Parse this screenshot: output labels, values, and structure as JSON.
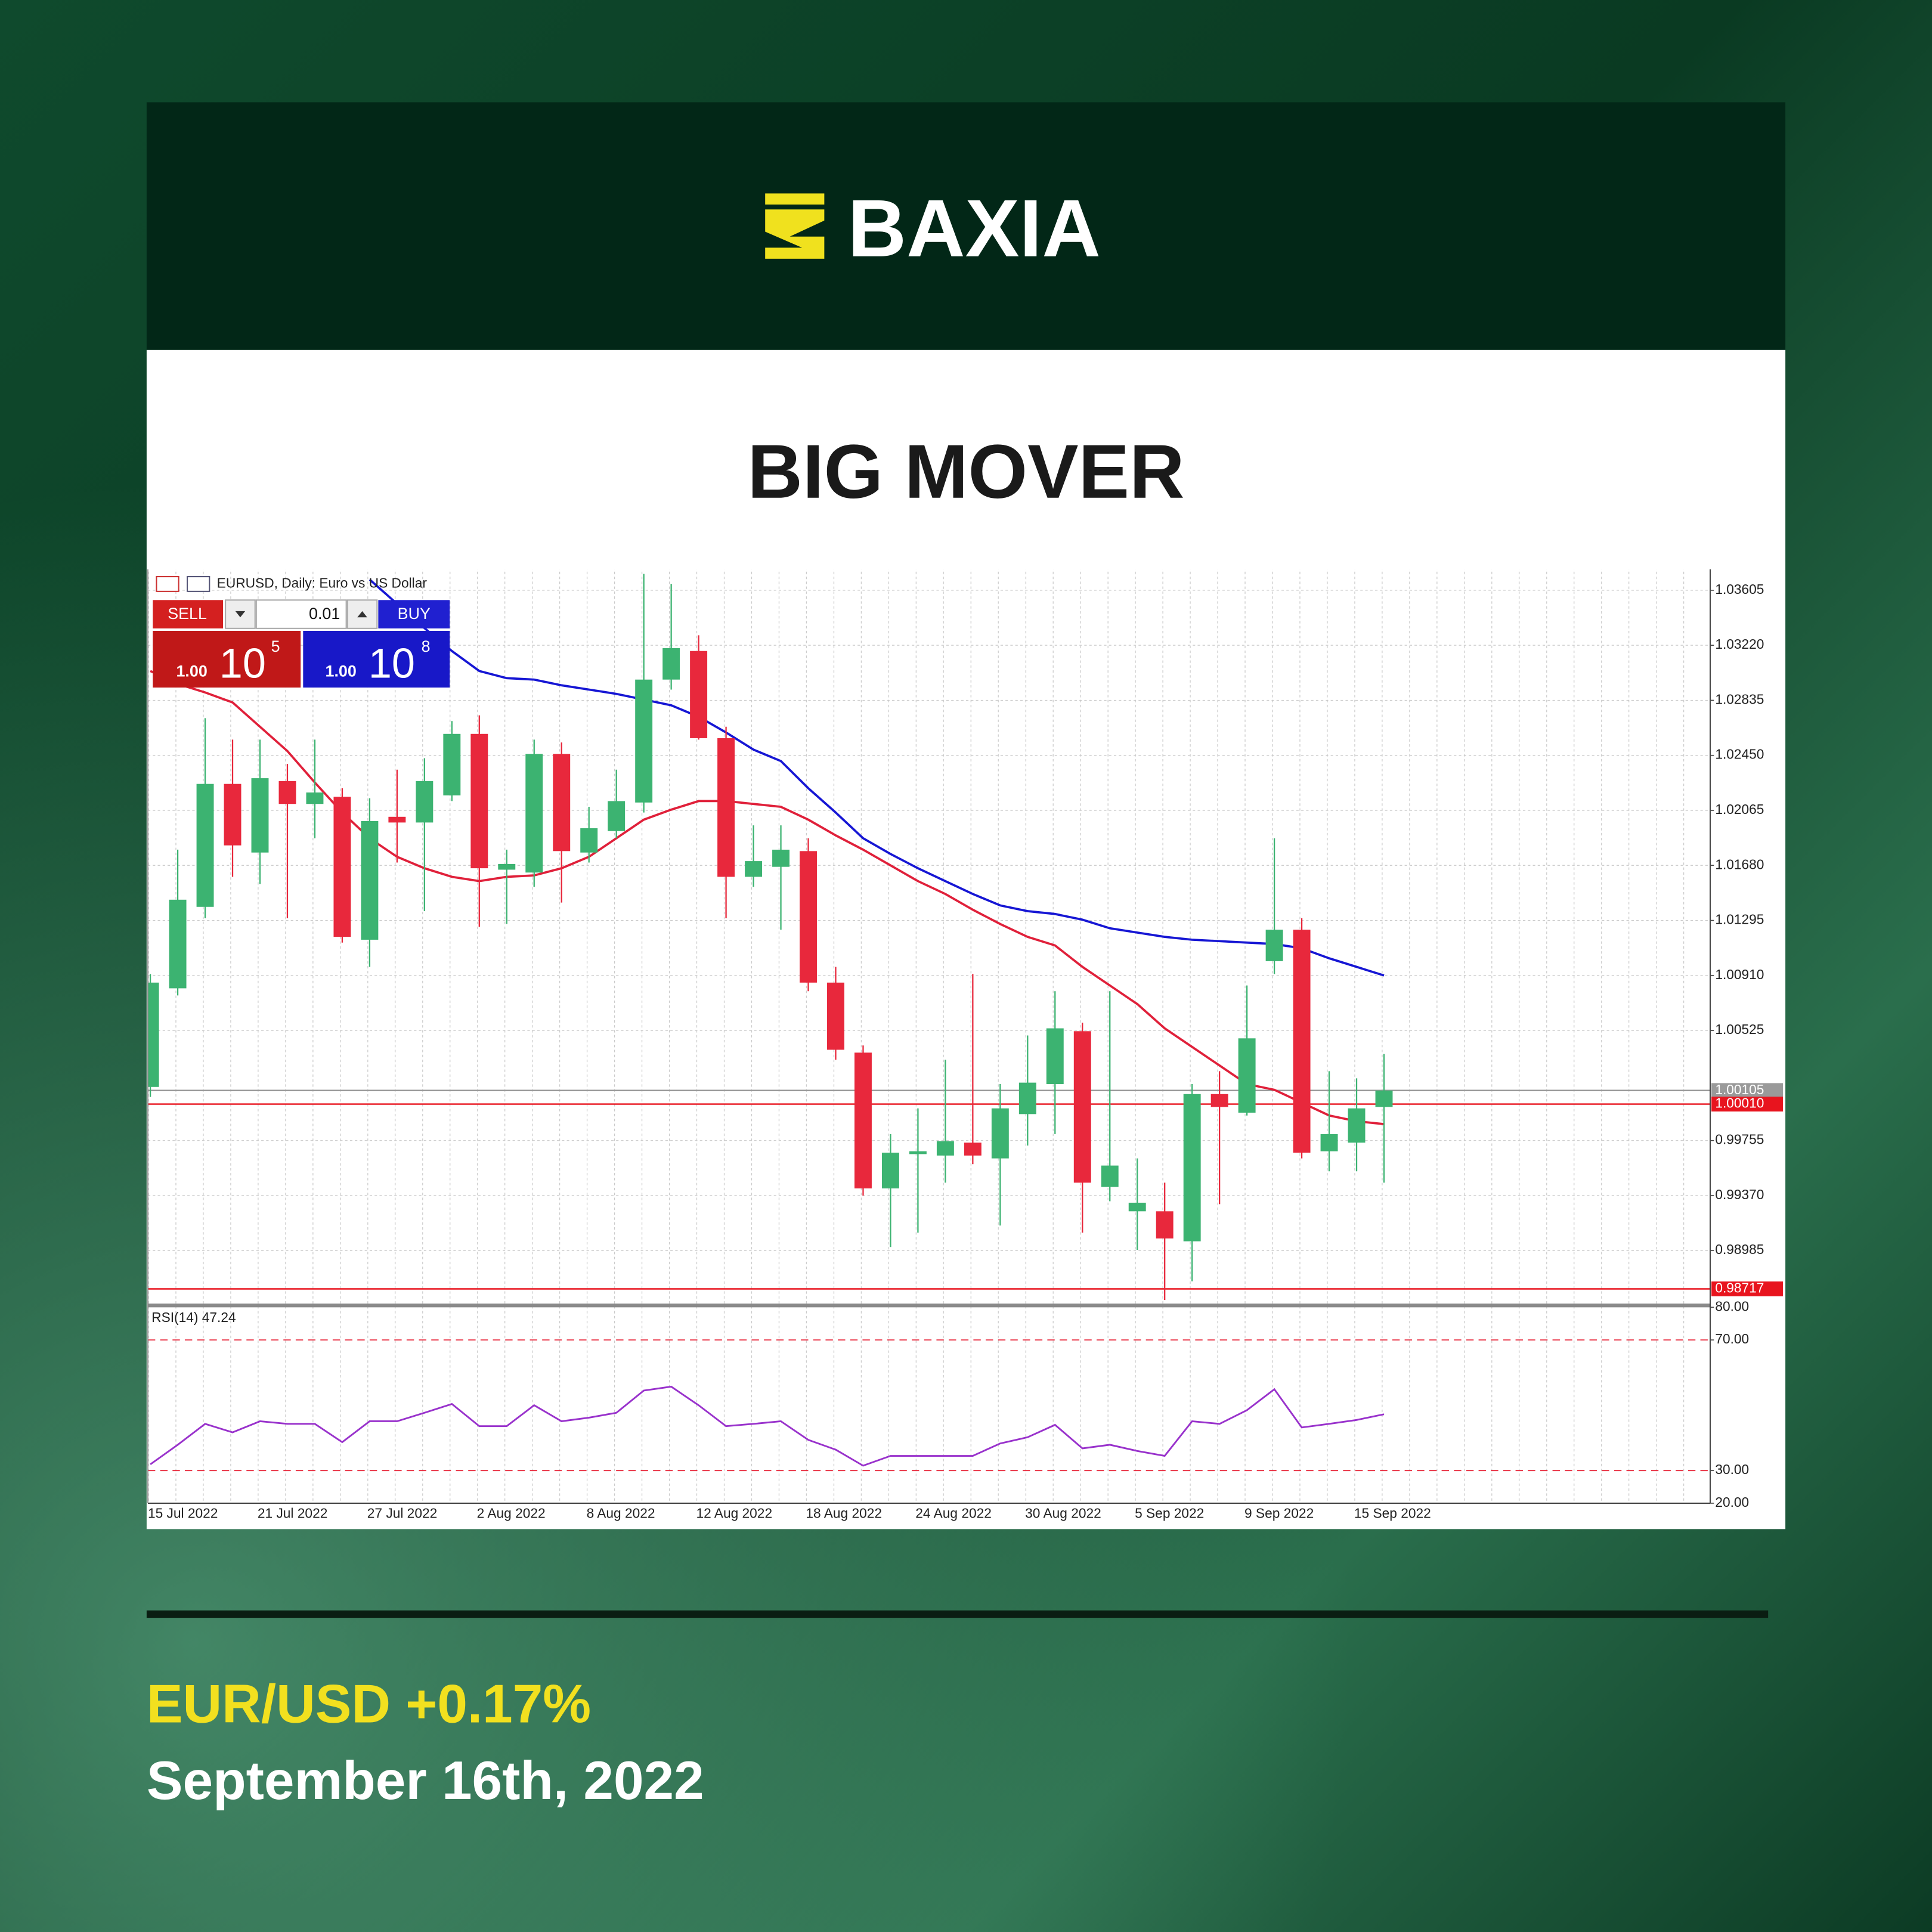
{
  "brand": "BAXIA",
  "headline": "BIG MOVER",
  "footer": {
    "pair_change": "EUR/USD +0.17%",
    "date": "September 16th, 2022"
  },
  "terminal": {
    "sell": "SELL",
    "lot": "0.01",
    "buy": "BUY",
    "sell_volume": "1.00",
    "sell_big": "10",
    "sell_small": "5",
    "buy_volume": "1.00",
    "buy_big": "10",
    "buy_small": "8"
  },
  "chart_data": [
    {
      "type": "candlestick",
      "title": "EURUSD, Daily:  Euro vs US Dollar",
      "categories": [
        "15 Jul 2022",
        null,
        null,
        null,
        "21 Jul 2022",
        null,
        null,
        null,
        "27 Jul 2022",
        null,
        null,
        null,
        "2 Aug 2022",
        null,
        null,
        null,
        "8 Aug 2022",
        null,
        null,
        null,
        "12 Aug 2022",
        null,
        null,
        null,
        "18 Aug 2022",
        null,
        null,
        null,
        "24 Aug 2022",
        null,
        null,
        null,
        "30 Aug 2022",
        null,
        null,
        null,
        "5 Sep 2022",
        null,
        null,
        null,
        "9 Sep 2022",
        null,
        null,
        null,
        "15 Sep 2022",
        null
      ],
      "open": [
        1.0013,
        1.0082,
        1.0139,
        1.0225,
        1.0177,
        1.0227,
        1.0211,
        1.0216,
        1.0116,
        1.0202,
        1.0198,
        1.0217,
        1.026,
        1.0165,
        1.0163,
        1.0246,
        1.0177,
        1.0192,
        1.0212,
        1.0298,
        1.0318,
        1.0257,
        1.016,
        1.0167,
        1.0178,
        1.0086,
        1.0037,
        0.9942,
        0.9966,
        0.9965,
        0.9974,
        0.9963,
        0.9994,
        1.0015,
        1.0052,
        0.9943,
        0.9926,
        0.9926,
        0.9905,
        1.0008,
        0.9995,
        1.0101,
        1.0123,
        0.9968,
        0.9974,
        0.9999
      ],
      "high": [
        1.0092,
        1.0179,
        1.0271,
        1.0256,
        1.0256,
        1.0239,
        1.0256,
        1.0222,
        1.0215,
        1.0235,
        1.0243,
        1.0269,
        1.0273,
        1.0179,
        1.0256,
        1.0254,
        1.0209,
        1.0235,
        1.0372,
        1.0365,
        1.0329,
        1.0265,
        1.0196,
        1.0196,
        1.0187,
        1.0097,
        1.0042,
        0.998,
        0.9998,
        1.0032,
        1.0092,
        1.0015,
        1.0049,
        1.008,
        1.0058,
        1.008,
        0.9963,
        0.9946,
        1.0015,
        1.0024,
        1.0084,
        1.0187,
        1.0131,
        1.0024,
        1.0019,
        1.0036
      ],
      "low": [
        1.0006,
        1.0077,
        1.0131,
        1.016,
        1.0155,
        1.0131,
        1.0187,
        1.0114,
        1.0097,
        1.017,
        1.0136,
        1.0213,
        1.0125,
        1.0127,
        1.0153,
        1.0142,
        1.017,
        1.0187,
        1.0205,
        1.0291,
        1.0256,
        1.0131,
        1.0153,
        1.0123,
        1.008,
        1.0032,
        0.9937,
        0.9901,
        0.9911,
        0.9946,
        0.9959,
        0.9916,
        0.9972,
        0.998,
        0.9911,
        0.9933,
        0.9899,
        0.9864,
        0.9877,
        0.9931,
        0.9993,
        1.0092,
        0.9963,
        0.9954,
        0.9954,
        0.9946
      ],
      "close": [
        1.0086,
        1.0144,
        1.0225,
        1.0182,
        1.0229,
        1.0211,
        1.0219,
        1.0118,
        1.0199,
        1.0198,
        1.0227,
        1.026,
        1.0166,
        1.0169,
        1.0246,
        1.0178,
        1.0194,
        1.0213,
        1.0298,
        1.032,
        1.0257,
        1.016,
        1.0171,
        1.0179,
        1.0086,
        1.0039,
        0.9942,
        0.9967,
        0.9968,
        0.9975,
        0.9965,
        0.9998,
        1.0016,
        1.0054,
        0.9946,
        0.9958,
        0.9932,
        0.9907,
        1.0008,
        0.9999,
        1.0047,
        1.0123,
        0.9967,
        0.998,
        0.9998,
        1.00105
      ],
      "up_color": "#3cb371",
      "down_color": "#e8283c",
      "series": [
        {
          "color": "#e0203a",
          "values": [
            1.0304,
            1.0295,
            1.0289,
            1.0282,
            1.0265,
            1.0248,
            1.0226,
            1.0205,
            1.0187,
            1.0174,
            1.0166,
            1.016,
            1.0157,
            1.016,
            1.0161,
            1.0166,
            1.0174,
            1.0187,
            1.02,
            1.0207,
            1.0213,
            1.0213,
            1.0211,
            1.0209,
            1.02,
            1.0189,
            1.0179,
            1.0168,
            1.0157,
            1.0148,
            1.0137,
            1.0127,
            1.0118,
            1.0112,
            1.0097,
            1.0084,
            1.0071,
            1.0054,
            1.0041,
            1.0028,
            1.0015,
            1.0011,
            1.0002,
            0.9993,
            0.9989,
            0.9987
          ]
        },
        {
          "color": "#1616d4",
          "values": [
            null,
            null,
            null,
            null,
            null,
            null,
            null,
            null,
            1.0368,
            1.0351,
            1.0334,
            1.0318,
            1.0304,
            1.0299,
            1.0298,
            1.0294,
            1.0291,
            1.0288,
            1.0284,
            1.028,
            1.0272,
            1.0261,
            1.0249,
            1.0241,
            1.0222,
            1.0205,
            1.0187,
            1.0176,
            1.0166,
            1.0157,
            1.0148,
            1.014,
            1.0136,
            1.0134,
            1.013,
            1.0124,
            1.0121,
            1.0118,
            1.0116,
            1.0115,
            1.0114,
            1.0113,
            1.011,
            1.0103,
            1.0097,
            1.0091
          ]
        }
      ],
      "ylim": [
        0.98614,
        1.03752
      ],
      "yticks": [
        1.03605,
        {
          "value": 1.0322,
          "label": "1.03220"
        },
        1.02835,
        {
          "value": 1.0245,
          "label": "1.02450"
        },
        1.02065,
        {
          "value": 1.0168,
          "label": "1.01680"
        },
        1.01295,
        {
          "value": 1.0091,
          "label": "1.00910"
        },
        1.00525,
        0.99755,
        {
          "value": 0.9937,
          "label": "0.99370"
        },
        0.98985
      ],
      "hlines": [
        {
          "value": 1.00105,
          "label": "1.00105",
          "color": "#9a9a9a"
        },
        {
          "value": 1.0001,
          "label": "1.00010",
          "color": "#e8141e"
        },
        {
          "value": 0.98717,
          "label": "0.98717",
          "color": "#e8141e"
        }
      ],
      "grid": true
    },
    {
      "type": "line",
      "title": "RSI(14) 47.24",
      "color": "#9932cc",
      "values": [
        31.9,
        37.9,
        44.3,
        41.7,
        45.1,
        44.3,
        44.3,
        38.7,
        45.1,
        45.1,
        47.7,
        50.4,
        43.6,
        43.6,
        50,
        45.1,
        46.2,
        47.7,
        54.5,
        55.7,
        50,
        43.6,
        44.3,
        45.1,
        39.4,
        36.4,
        31.5,
        34.5,
        34.5,
        34.5,
        34.5,
        38.3,
        40.2,
        44,
        36.8,
        37.9,
        36,
        34.5,
        45.1,
        44.3,
        48.5,
        54.9,
        43.2,
        44.3,
        45.5,
        47.24
      ],
      "ylim": [
        20,
        80
      ],
      "yticks": [
        {
          "value": 80,
          "label": "80.00"
        },
        {
          "value": 70,
          "label": "70.00"
        },
        {
          "value": 30,
          "label": "30.00"
        },
        {
          "value": 20,
          "label": "20.00"
        }
      ],
      "levels": [
        70,
        30
      ],
      "level_color": "#e8283c"
    }
  ]
}
